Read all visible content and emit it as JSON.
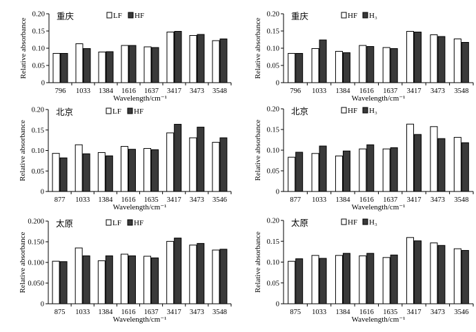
{
  "colors": {
    "light": "#ffffff",
    "dark": "#3a3a3a",
    "axis": "#000000"
  },
  "chart_data": [
    {
      "type": "bar",
      "title": "重庆",
      "xlabel": "Wavelength/cm⁻¹",
      "ylabel": "Relative absorbance",
      "ylim": [
        0,
        0.2
      ],
      "yticks": [
        "0",
        "0.05",
        "0.10",
        "0.15",
        "0.20"
      ],
      "categories": [
        "796",
        "1033",
        "1384",
        "1616",
        "1637",
        "3417",
        "3473",
        "3548"
      ],
      "series": [
        {
          "name": "LF",
          "values": [
            0.085,
            0.113,
            0.089,
            0.108,
            0.104,
            0.147,
            0.137,
            0.122
          ]
        },
        {
          "name": "HF",
          "values": [
            0.085,
            0.099,
            0.09,
            0.108,
            0.102,
            0.149,
            0.14,
            0.127
          ]
        }
      ]
    },
    {
      "type": "bar",
      "title": "重庆",
      "xlabel": "Wavelength/cm⁻¹",
      "ylabel": "Relative absorbance",
      "ylim": [
        0,
        0.2
      ],
      "yticks": [
        "0",
        "0.05",
        "0.10",
        "0.15",
        "0.20"
      ],
      "categories": [
        "796",
        "1033",
        "1384",
        "1616",
        "1637",
        "3417",
        "3473",
        "3548"
      ],
      "series": [
        {
          "name": "HF",
          "values": [
            0.085,
            0.099,
            0.091,
            0.108,
            0.102,
            0.149,
            0.139,
            0.127
          ]
        },
        {
          "name": "H₃",
          "values": [
            0.085,
            0.124,
            0.087,
            0.105,
            0.099,
            0.147,
            0.134,
            0.117
          ]
        }
      ]
    },
    {
      "type": "bar",
      "title": "北京",
      "xlabel": "Wavelength/cm⁻¹",
      "ylabel": "Relative absorbance",
      "ylim": [
        0,
        0.2
      ],
      "yticks": [
        "0",
        "0.05",
        "0.10",
        "0.15",
        "0.20"
      ],
      "categories": [
        "877",
        "1033",
        "1384",
        "1616",
        "1635",
        "3417",
        "3473",
        "3546"
      ],
      "series": [
        {
          "name": "LF",
          "values": [
            0.093,
            0.114,
            0.095,
            0.11,
            0.105,
            0.143,
            0.131,
            0.12
          ]
        },
        {
          "name": "HF",
          "values": [
            0.082,
            0.092,
            0.087,
            0.103,
            0.102,
            0.164,
            0.157,
            0.131
          ]
        }
      ]
    },
    {
      "type": "bar",
      "title": "北京",
      "xlabel": "Wavelength/cm⁻¹",
      "ylabel": "Relative absorbance",
      "ylim": [
        0,
        0.2
      ],
      "yticks": [
        "0",
        "0.05",
        "0.10",
        "0.15",
        "0.20"
      ],
      "categories": [
        "877",
        "1033",
        "1384",
        "1616",
        "1637",
        "3417",
        "3473",
        "3548"
      ],
      "series": [
        {
          "name": "HF",
          "values": [
            0.083,
            0.092,
            0.086,
            0.103,
            0.103,
            0.163,
            0.157,
            0.131
          ]
        },
        {
          "name": "H₃",
          "values": [
            0.095,
            0.11,
            0.098,
            0.113,
            0.106,
            0.138,
            0.128,
            0.118
          ]
        }
      ]
    },
    {
      "type": "bar",
      "title": "太原",
      "xlabel": "Wavelength/cm⁻¹",
      "ylabel": "Relative absorbance",
      "ylim": [
        0,
        0.2
      ],
      "yticks": [
        "0",
        "0.050",
        "0.100",
        "0.150",
        "0.200"
      ],
      "categories": [
        "875",
        "1033",
        "1384",
        "1616",
        "1637",
        "3417",
        "3473",
        "3548"
      ],
      "series": [
        {
          "name": "LF",
          "values": [
            0.103,
            0.135,
            0.104,
            0.12,
            0.115,
            0.151,
            0.142,
            0.13
          ]
        },
        {
          "name": "HF",
          "values": [
            0.102,
            0.116,
            0.116,
            0.116,
            0.111,
            0.159,
            0.146,
            0.132
          ]
        }
      ]
    },
    {
      "type": "bar",
      "title": "太原",
      "xlabel": "Wavelength/cm⁻¹",
      "ylabel": "Relative absorbance",
      "ylim": [
        0,
        0.2
      ],
      "yticks": [
        "0",
        "0.05",
        "0.10",
        "0.15",
        "0.20"
      ],
      "categories": [
        "875",
        "1033",
        "1384",
        "1616",
        "1635",
        "3417",
        "3473",
        "3546"
      ],
      "series": [
        {
          "name": "HF",
          "values": [
            0.102,
            0.116,
            0.116,
            0.115,
            0.111,
            0.159,
            0.146,
            0.132
          ]
        },
        {
          "name": "H₃",
          "values": [
            0.108,
            0.109,
            0.121,
            0.121,
            0.117,
            0.151,
            0.14,
            0.128
          ]
        }
      ]
    }
  ]
}
